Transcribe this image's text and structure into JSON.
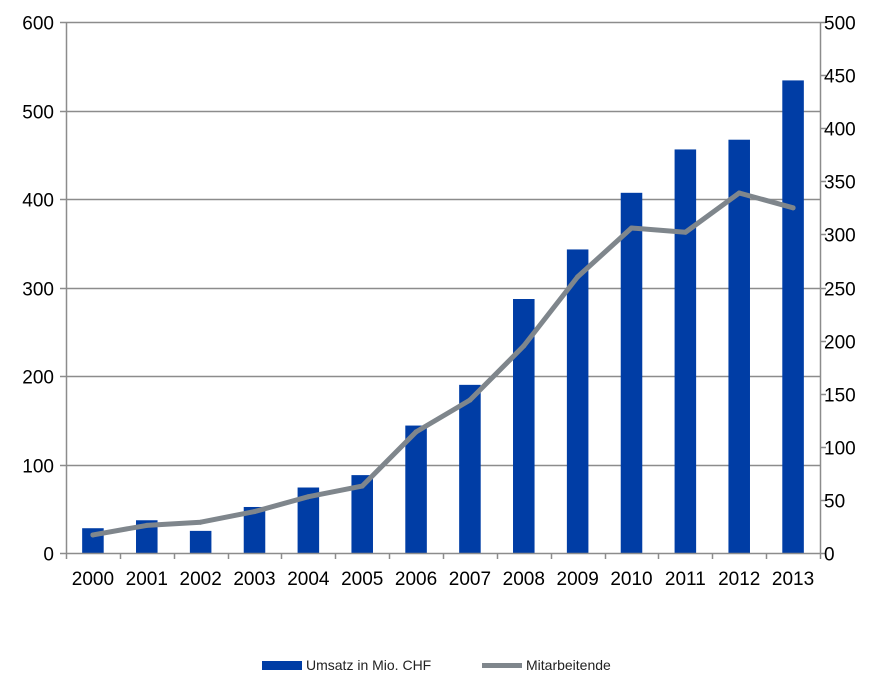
{
  "chart_data": {
    "type": "bar",
    "categories": [
      "2000",
      "2001",
      "2002",
      "2003",
      "2004",
      "2005",
      "2006",
      "2007",
      "2008",
      "2009",
      "2010",
      "2011",
      "2012",
      "2013"
    ],
    "series": [
      {
        "name": "Umsatz in Mio. CHF",
        "type": "bar",
        "axis": "left",
        "color": "#003DA5",
        "values": [
          28,
          37,
          25,
          52,
          74,
          88,
          144,
          190,
          287,
          343,
          407,
          456,
          467,
          534
        ]
      },
      {
        "name": "Mitarbeitende",
        "type": "line",
        "axis": "right",
        "color": "#7F868C",
        "values": [
          17,
          26,
          29,
          39,
          53,
          63,
          114,
          144,
          195,
          260,
          306,
          302,
          339,
          325
        ]
      }
    ],
    "y_left": {
      "lim": [
        0,
        600
      ],
      "ticks": [
        0,
        100,
        200,
        300,
        400,
        500,
        600
      ]
    },
    "y_right": {
      "lim": [
        0,
        500
      ],
      "ticks": [
        0,
        50,
        100,
        150,
        200,
        250,
        300,
        350,
        400,
        450,
        500
      ]
    },
    "grid": true,
    "legend_position": "bottom"
  }
}
